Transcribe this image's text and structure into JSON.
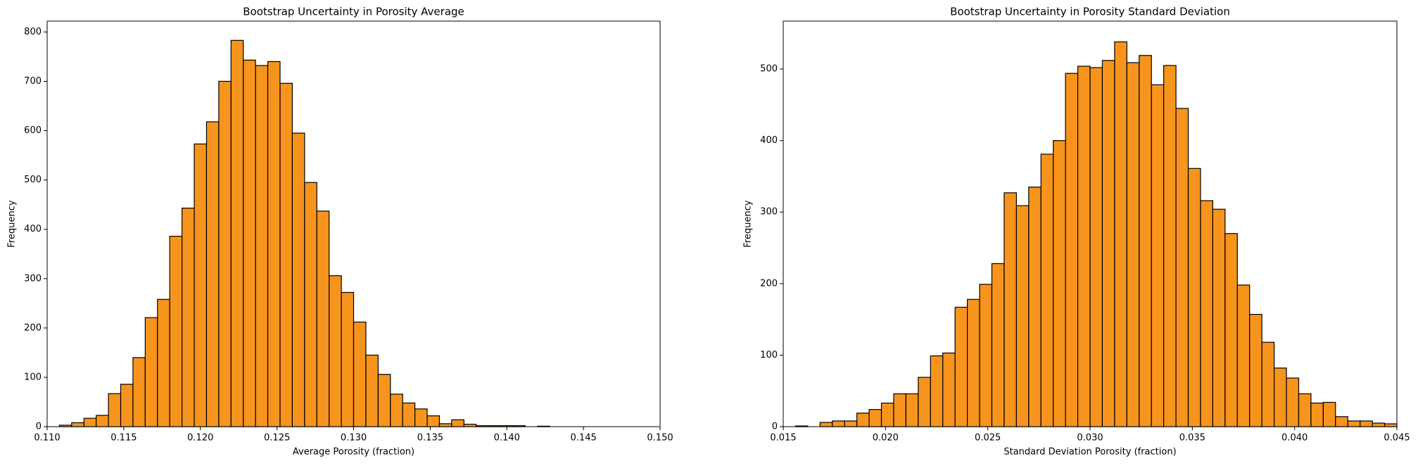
{
  "chart_data": [
    {
      "type": "histogram",
      "title": "Bootstrap Uncertainty in Porosity Average",
      "x_label": "Average Porosity (fraction)",
      "y_label": "Frequency",
      "color": "#f7941d",
      "edgecolor": "#000000",
      "bins": [
        0.1108,
        0.1116,
        0.1124,
        0.1132,
        0.114,
        0.1148,
        0.1156,
        0.1164,
        0.1172,
        0.118,
        0.1188,
        0.1196,
        0.1204,
        0.1212,
        0.122,
        0.1228,
        0.1236,
        0.1244,
        0.1252,
        0.126,
        0.1268,
        0.1276,
        0.1284,
        0.1292,
        0.13,
        0.1308,
        0.1316,
        0.1324,
        0.1332,
        0.134,
        0.1348,
        0.1356,
        0.1364,
        0.1372,
        0.138,
        0.1388,
        0.1396,
        0.1404,
        0.1412,
        0.142,
        0.1428
      ],
      "values": [
        3,
        8,
        17,
        23,
        67,
        86,
        140,
        221,
        258,
        386,
        443,
        573,
        618,
        700,
        783,
        743,
        732,
        740,
        696,
        595,
        495,
        437,
        306,
        272,
        212,
        145,
        106,
        66,
        48,
        36,
        22,
        6,
        14,
        5,
        2,
        2,
        2,
        2,
        0,
        1
      ],
      "xlim": [
        0.11,
        0.15
      ],
      "xticks": [
        {
          "value": 0.11,
          "label": "0.110"
        },
        0.115,
        {
          "value": 0.12,
          "label": "0.120"
        },
        0.125,
        {
          "value": 0.13,
          "label": "0.130"
        },
        0.135,
        {
          "value": 0.14,
          "label": "0.140"
        },
        0.145,
        {
          "value": 0.15,
          "label": "0.150"
        }
      ],
      "ylim": [
        0,
        822
      ],
      "yticks": [
        0,
        100,
        200,
        300,
        400,
        500,
        600,
        700,
        800
      ],
      "grid": false
    },
    {
      "type": "histogram",
      "title": "Bootstrap Uncertainty in Porosity Standard Deviation",
      "x_label": "Standard Deviation Porosity (fraction)",
      "y_label": "Frequency",
      "color": "#f7941d",
      "edgecolor": "#000000",
      "bins": [
        0.0156,
        0.0162,
        0.0168,
        0.0174,
        0.018,
        0.0186,
        0.0192,
        0.0198,
        0.0204,
        0.021,
        0.0216,
        0.0222,
        0.0228,
        0.0234,
        0.024,
        0.0246,
        0.0252,
        0.0258,
        0.0264,
        0.027,
        0.0276,
        0.0282,
        0.0288,
        0.0294,
        0.03,
        0.0306,
        0.0312,
        0.0318,
        0.0324,
        0.033,
        0.0336,
        0.0342,
        0.0348,
        0.0354,
        0.036,
        0.0366,
        0.0372,
        0.0378,
        0.0384,
        0.039,
        0.0396,
        0.0402,
        0.0408,
        0.0414,
        0.042,
        0.0426,
        0.0432,
        0.0438,
        0.0444,
        0.045
      ],
      "values": [
        1,
        0,
        6,
        8,
        8,
        19,
        24,
        33,
        46,
        46,
        69,
        99,
        103,
        167,
        178,
        199,
        228,
        327,
        309,
        335,
        381,
        400,
        494,
        504,
        502,
        512,
        538,
        509,
        519,
        478,
        505,
        445,
        361,
        316,
        304,
        270,
        198,
        157,
        118,
        82,
        68,
        46,
        33,
        34,
        14,
        8,
        8,
        5,
        4
      ],
      "xlim": [
        0.015,
        0.045
      ],
      "xticks": [
        0.015,
        {
          "value": 0.02,
          "label": "0.020"
        },
        0.025,
        {
          "value": 0.03,
          "label": "0.030"
        },
        0.035,
        {
          "value": 0.04,
          "label": "0.040"
        },
        0.045
      ],
      "ylim": [
        0,
        567
      ],
      "yticks": [
        0,
        100,
        200,
        300,
        400,
        500
      ],
      "grid": false
    }
  ]
}
